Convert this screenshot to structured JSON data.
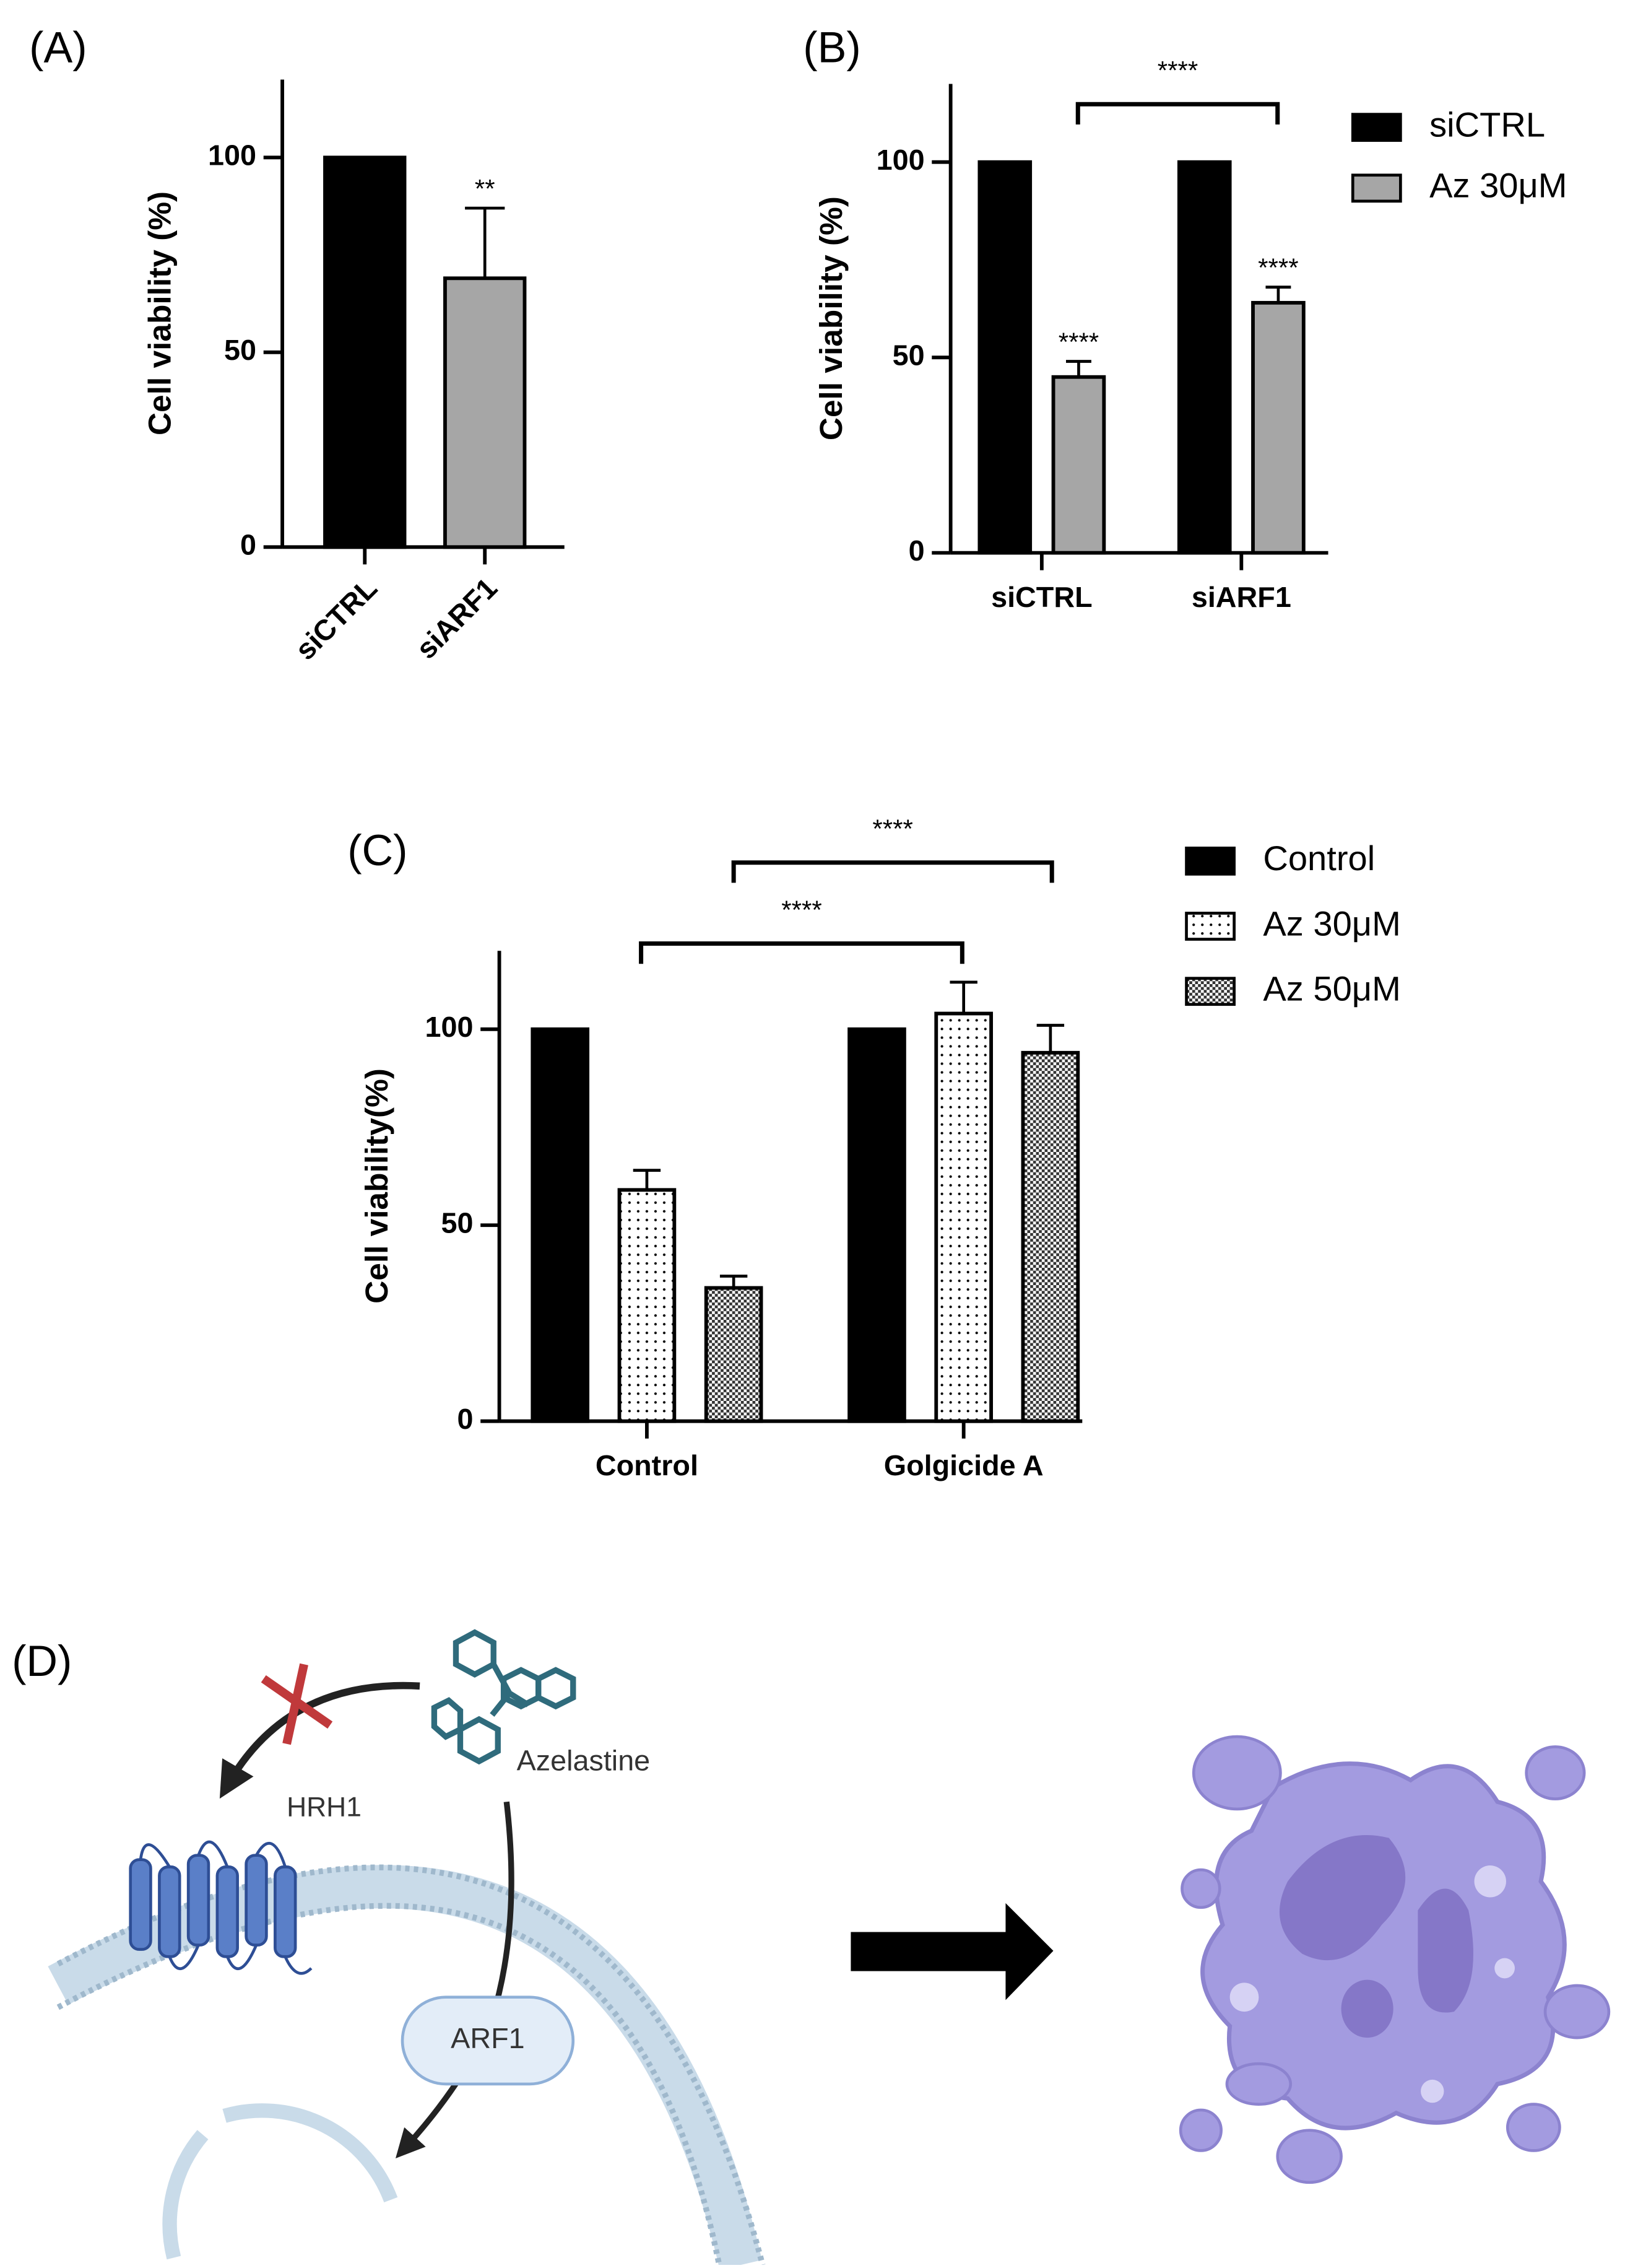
{
  "chart_data": [
    {
      "type": "bar",
      "label": "(A)",
      "ylabel": "Cell viability (%)",
      "categories": [
        "siCTRL",
        "siARF1"
      ],
      "values": [
        100,
        69
      ],
      "errors": [
        null,
        18
      ],
      "colors": [
        "#000000",
        "#a6a6a6"
      ],
      "stars": [
        null,
        "**"
      ],
      "ylim": [
        0,
        120
      ],
      "yticks": [
        0,
        50,
        100
      ]
    },
    {
      "type": "grouped_bar",
      "label": "(B)",
      "ylabel": "Cell viability (%)",
      "categories": [
        "siCTRL",
        "siARF1"
      ],
      "series": [
        {
          "name": "siCTRL",
          "color": "#000000",
          "values": [
            100,
            100
          ]
        },
        {
          "name": "Az 30μM",
          "color": "#a6a6a6",
          "values": [
            45,
            64
          ],
          "errors": [
            4,
            4
          ],
          "stars": [
            "****",
            "****"
          ]
        }
      ],
      "brackets": [
        "****"
      ],
      "ylim": [
        0,
        120
      ],
      "yticks": [
        0,
        50,
        100
      ]
    },
    {
      "type": "grouped_bar",
      "label": "(C)",
      "ylabel": "Cell viability(%)",
      "categories": [
        "Control",
        "Golgicide A"
      ],
      "series": [
        {
          "name": "Control",
          "color": "#000000",
          "values": [
            100,
            100
          ]
        },
        {
          "name": "Az 30μM",
          "color": "#ffffff",
          "fill": "dots",
          "values": [
            59,
            104
          ],
          "errors": [
            5,
            8
          ]
        },
        {
          "name": "Az 50μM",
          "color": "#ffffff",
          "fill": "checker",
          "values": [
            34,
            94
          ],
          "errors": [
            3,
            7
          ]
        }
      ],
      "brackets": [
        "****",
        "****"
      ],
      "ylim": [
        0,
        120
      ],
      "yticks": [
        0,
        50,
        100
      ]
    }
  ],
  "diagram": {
    "label": "(D)",
    "drug": "Azelastine",
    "receptor": "HRH1",
    "protein": "ARF1"
  }
}
